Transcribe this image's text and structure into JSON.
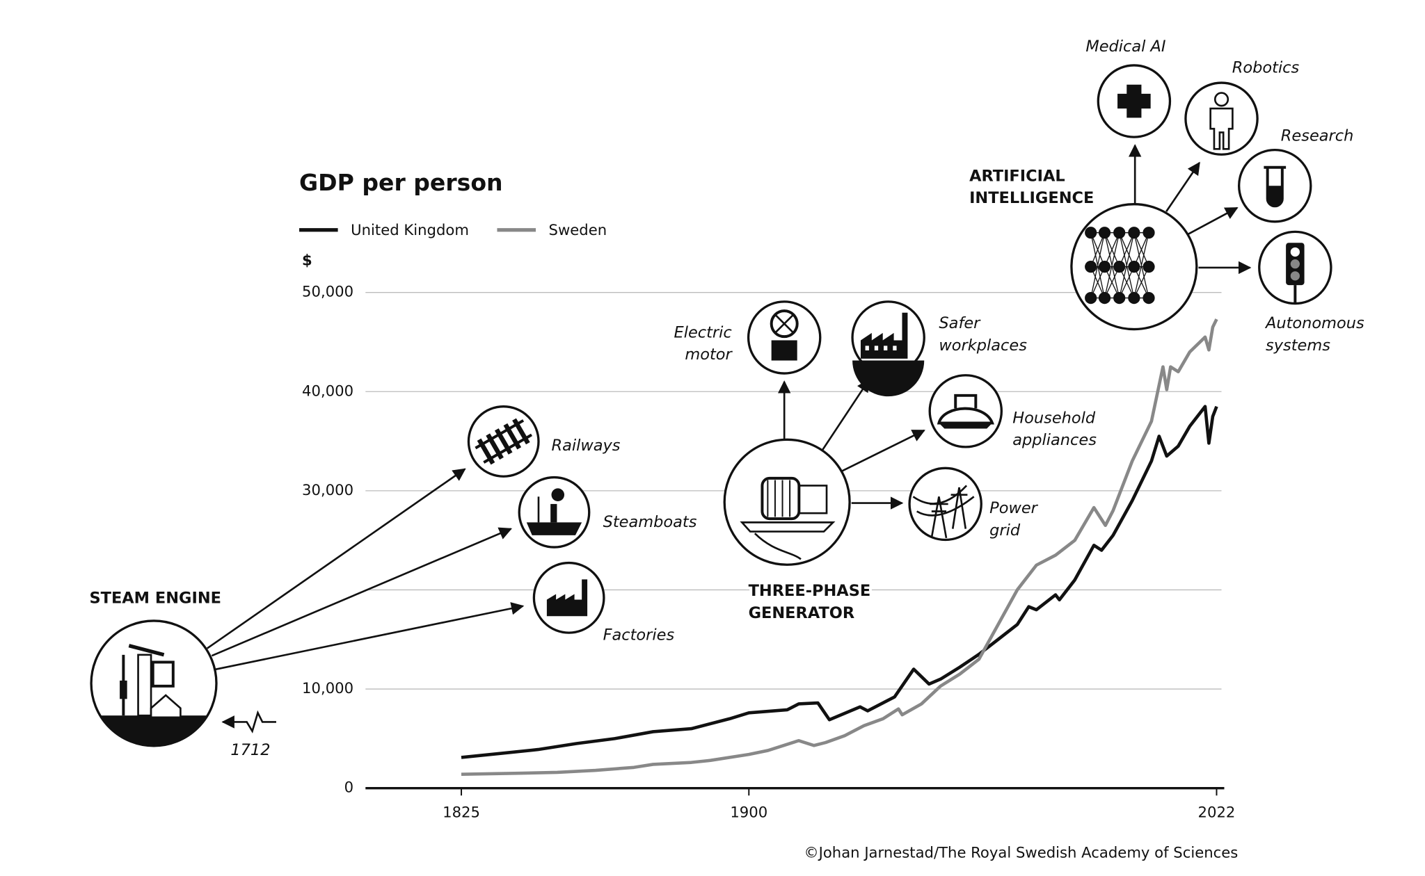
{
  "chart_data": {
    "type": "line",
    "title": "GDP per person",
    "ylabel": "$",
    "credit": "©Johan Jarnestad/The Royal Swedish Academy of Sciences",
    "xlim": [
      1800,
      2024
    ],
    "xticks": [
      1825,
      1900,
      2022
    ],
    "ylim": [
      0,
      50000
    ],
    "yticks": [
      0,
      {
        "value": 10000,
        "label": "10,000"
      },
      {
        "value": 30000,
        "label": "30,000"
      },
      {
        "value": 40000,
        "label": "40,000"
      },
      {
        "value": 50000,
        "label": "50,000"
      }
    ],
    "gridlines": [
      10000,
      20000,
      30000,
      40000,
      50000
    ],
    "series": [
      {
        "name": "United Kingdom",
        "color": "#111111",
        "x": [
          1825,
          1835,
          1845,
          1855,
          1865,
          1875,
          1885,
          1895,
          1900,
          1910,
          1913,
          1918,
          1921,
          1929,
          1931,
          1938,
          1943,
          1947,
          1950,
          1955,
          1960,
          1965,
          1970,
          1973,
          1975,
          1980,
          1981,
          1985,
          1990,
          1992,
          1995,
          2000,
          2005,
          2007,
          2009,
          2012,
          2015,
          2019,
          2020,
          2021,
          2022
        ],
        "values": [
          3100,
          3500,
          3900,
          4500,
          5000,
          5700,
          6000,
          7000,
          7600,
          7900,
          8500,
          8600,
          6900,
          8200,
          7800,
          9200,
          12000,
          10500,
          11000,
          12200,
          13500,
          15000,
          16500,
          18300,
          18000,
          19500,
          19000,
          21000,
          24500,
          24000,
          25500,
          29000,
          33000,
          35500,
          33500,
          34500,
          36500,
          38500,
          34800,
          37500,
          38500
        ]
      },
      {
        "name": "Sweden",
        "color": "#888888",
        "x": [
          1825,
          1840,
          1850,
          1860,
          1870,
          1875,
          1885,
          1890,
          1900,
          1905,
          1913,
          1917,
          1920,
          1925,
          1930,
          1935,
          1939,
          1940,
          1945,
          1950,
          1955,
          1960,
          1965,
          1970,
          1975,
          1980,
          1985,
          1990,
          1993,
          1995,
          2000,
          2005,
          2008,
          2009,
          2010,
          2012,
          2015,
          2019,
          2020,
          2021,
          2022
        ],
        "values": [
          1400,
          1500,
          1600,
          1800,
          2100,
          2400,
          2600,
          2800,
          3400,
          3800,
          4800,
          4300,
          4600,
          5300,
          6300,
          7000,
          8000,
          7400,
          8500,
          10300,
          11500,
          13000,
          16500,
          20000,
          22500,
          23500,
          25000,
          28300,
          26500,
          28000,
          33000,
          37000,
          42500,
          40200,
          42500,
          42000,
          44000,
          45500,
          44200,
          46500,
          47300
        ]
      }
    ],
    "annotations": [
      {
        "lines": [
          "STEAM ENGINE"
        ]
      },
      {
        "lines": [
          "Railways"
        ]
      },
      {
        "lines": [
          "Steamboats"
        ]
      },
      {
        "lines": [
          "Factories"
        ]
      },
      {
        "lines": [
          "1712"
        ]
      },
      {
        "lines": [
          "THREE-PHASE",
          "GENERATOR"
        ]
      },
      {
        "lines": [
          "Electric",
          "motor"
        ]
      },
      {
        "lines": [
          "Safer",
          "workplaces"
        ]
      },
      {
        "lines": [
          "Household",
          "appliances"
        ]
      },
      {
        "lines": [
          "Power",
          "grid"
        ]
      },
      {
        "lines": [
          "ARTIFICIAL",
          "INTELLIGENCE"
        ]
      },
      {
        "lines": [
          "Medical AI"
        ]
      },
      {
        "lines": [
          "Robotics"
        ]
      },
      {
        "lines": [
          "Research"
        ]
      },
      {
        "lines": [
          "Autonomous",
          "systems"
        ]
      }
    ]
  }
}
